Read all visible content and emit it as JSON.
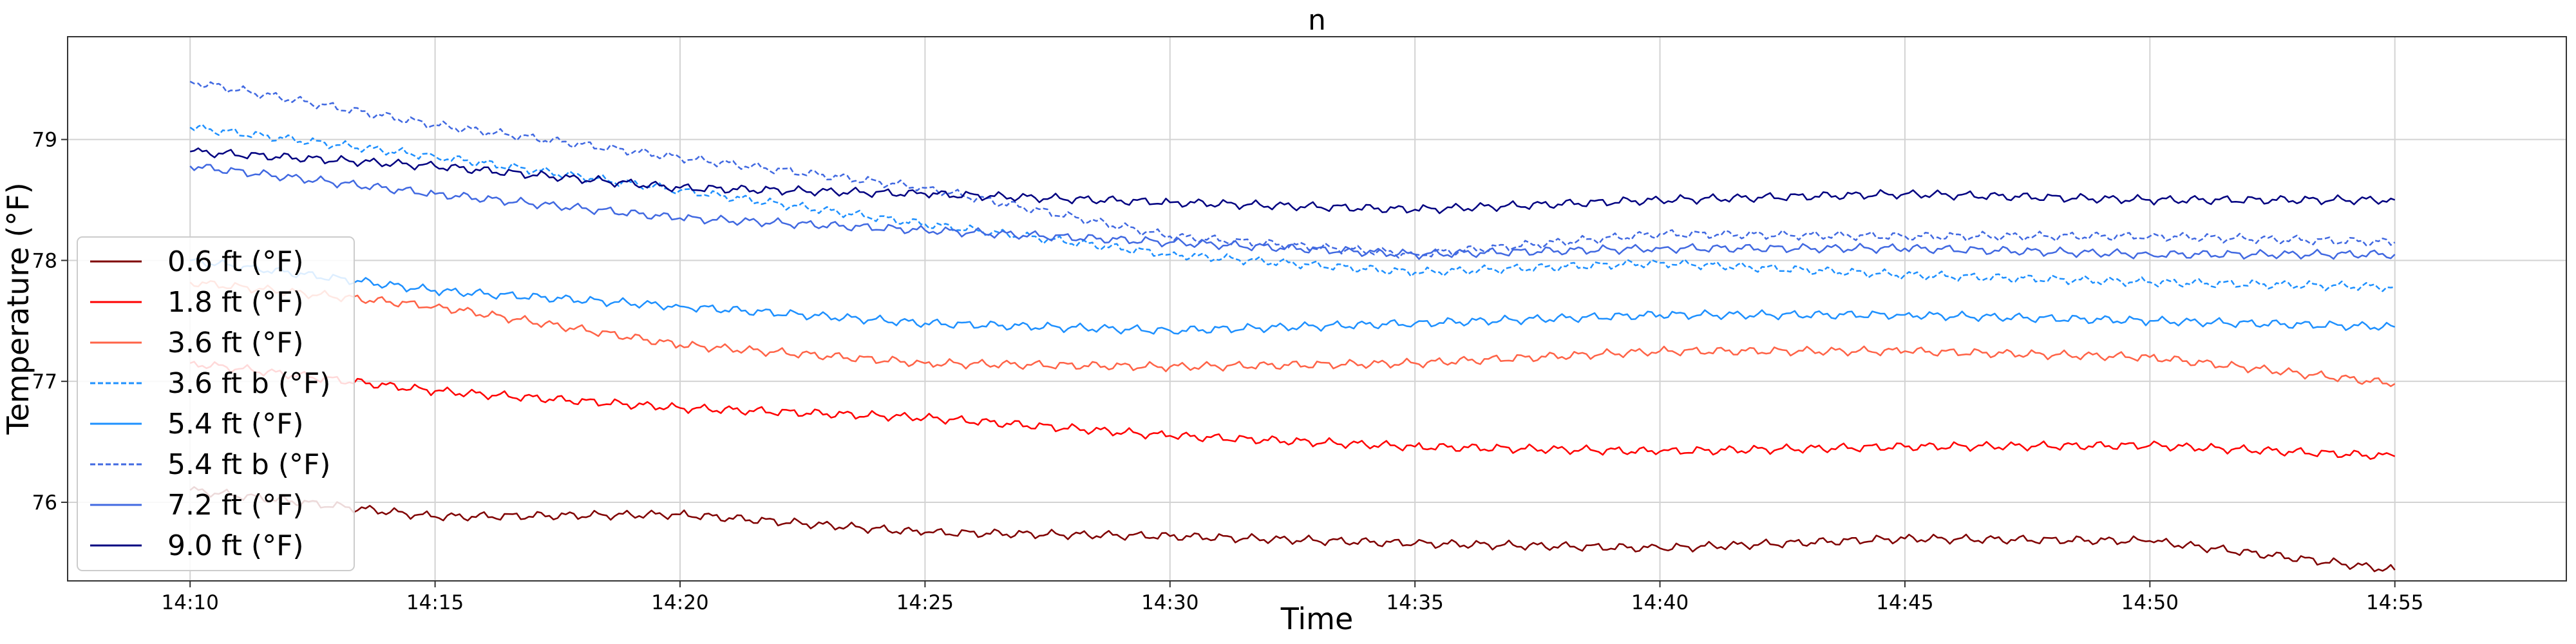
{
  "chart_data": {
    "type": "line",
    "title": "n",
    "xlabel": "Time",
    "ylabel": "Temperature (°F)",
    "x_range": [
      "14:07:30",
      "14:58:30"
    ],
    "ylim": [
      75.35,
      79.85
    ],
    "grid": true,
    "legend_position": "left",
    "x_ticks": [
      "14:10",
      "14:15",
      "14:20",
      "14:25",
      "14:30",
      "14:35",
      "14:40",
      "14:45",
      "14:50",
      "14:55"
    ],
    "y_ticks": [
      "76",
      "77",
      "78",
      "79"
    ],
    "x": [
      "14:10",
      "14:15",
      "14:20",
      "14:25",
      "14:30",
      "14:35",
      "14:40",
      "14:45",
      "14:50",
      "14:55"
    ],
    "series": [
      {
        "name": "0.6 ft (°F)",
        "color": "#800000",
        "dashed": false,
        "values": [
          76.1,
          75.88,
          75.9,
          75.75,
          75.72,
          75.66,
          75.62,
          75.7,
          75.68,
          75.44
        ]
      },
      {
        "name": "1.8 ft (°F)",
        "color": "#ff0000",
        "dashed": false,
        "values": [
          77.15,
          76.92,
          76.78,
          76.7,
          76.55,
          76.46,
          76.42,
          76.46,
          76.47,
          76.38
        ]
      },
      {
        "name": "3.6 ft (°F)",
        "color": "#ff6347",
        "dashed": false,
        "values": [
          77.82,
          77.62,
          77.3,
          77.15,
          77.12,
          77.15,
          77.25,
          77.25,
          77.2,
          76.98
        ]
      },
      {
        "name": "3.6 ft b (°F)",
        "color": "#1e90ff",
        "dashed": true,
        "values": [
          79.1,
          78.86,
          78.58,
          78.3,
          78.05,
          77.9,
          77.98,
          77.88,
          77.82,
          77.78
        ]
      },
      {
        "name": "5.4 ft (°F)",
        "color": "#1e90ff",
        "dashed": false,
        "values": [
          78.0,
          77.75,
          77.62,
          77.48,
          77.42,
          77.48,
          77.55,
          77.55,
          77.5,
          77.45
        ]
      },
      {
        "name": "5.4 ft b (°F)",
        "color": "#4169e1",
        "dashed": true,
        "values": [
          79.48,
          79.12,
          78.85,
          78.6,
          78.2,
          78.05,
          78.22,
          78.2,
          78.2,
          78.15
        ]
      },
      {
        "name": "7.2 ft (°F)",
        "color": "#4169e1",
        "dashed": false,
        "values": [
          78.78,
          78.55,
          78.35,
          78.25,
          78.15,
          78.05,
          78.1,
          78.1,
          78.05,
          78.05
        ]
      },
      {
        "name": "9.0 ft (°F)",
        "color": "#000080",
        "dashed": false,
        "values": [
          78.9,
          78.78,
          78.6,
          78.55,
          78.48,
          78.42,
          78.5,
          78.55,
          78.5,
          78.5
        ]
      }
    ]
  }
}
